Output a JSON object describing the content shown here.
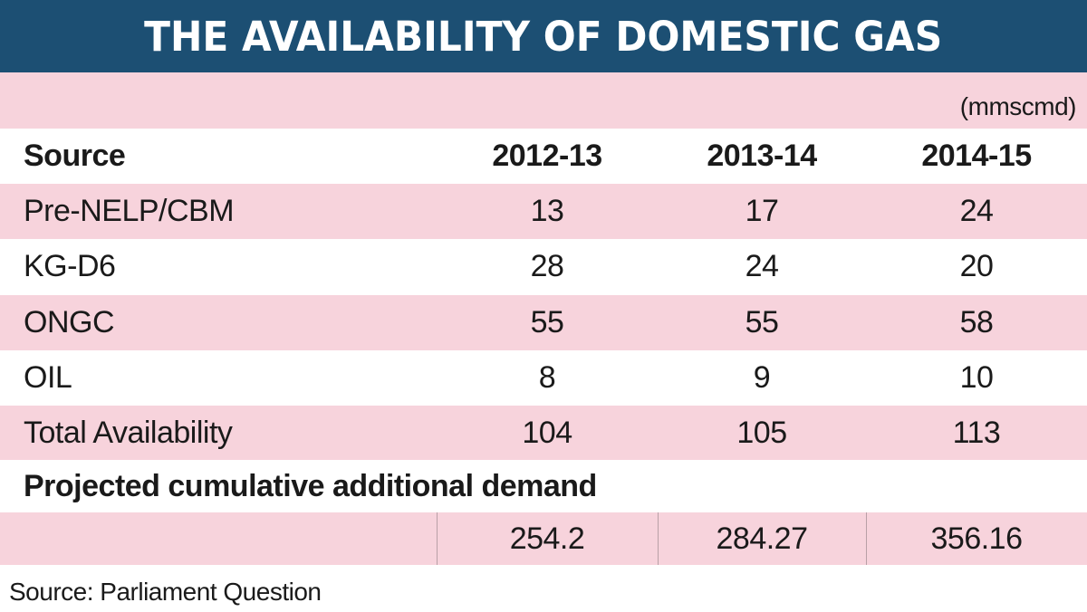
{
  "title": "THE AVAILABILITY OF DOMESTIC GAS",
  "unit": "(mmscmd)",
  "chart_data": {
    "type": "table",
    "columns": [
      "Source",
      "2012-13",
      "2013-14",
      "2014-15"
    ],
    "rows": [
      {
        "label": "Pre-NELP/CBM",
        "values": [
          "13",
          "17",
          "24"
        ]
      },
      {
        "label": "KG-D6",
        "values": [
          "28",
          "24",
          "20"
        ]
      },
      {
        "label": "ONGC",
        "values": [
          "55",
          "55",
          "58"
        ]
      },
      {
        "label": "OIL",
        "values": [
          "8",
          "9",
          "10"
        ]
      },
      {
        "label": "Total Availability",
        "values": [
          "104",
          "105",
          "113"
        ]
      }
    ],
    "projected": {
      "label": "Projected cumulative additional demand",
      "values": [
        "254.2",
        "284.27",
        "356.16"
      ]
    }
  },
  "source_note": "Source: Parliament Question",
  "colors": {
    "banner": "#1c4f73",
    "pink_row": "#f7d3dc",
    "text": "#1a1a1a"
  }
}
